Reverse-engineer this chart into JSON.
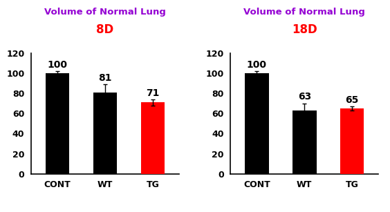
{
  "left": {
    "title_line1": "Volume of Normal Lung",
    "title_line2": "8D",
    "categories": [
      "CONT",
      "WT",
      "TG"
    ],
    "values": [
      100,
      81,
      71
    ],
    "errors": [
      2,
      8,
      3
    ],
    "bar_colors": [
      "#000000",
      "#000000",
      "#ff0000"
    ],
    "ylim": [
      0,
      120
    ],
    "yticks": [
      0,
      20,
      40,
      60,
      80,
      100,
      120
    ]
  },
  "right": {
    "title_line1": "Volume of Normal Lung",
    "title_line2": "18D",
    "categories": [
      "CONT",
      "WT",
      "TG"
    ],
    "values": [
      100,
      63,
      65
    ],
    "errors": [
      2,
      7,
      2
    ],
    "bar_colors": [
      "#000000",
      "#000000",
      "#ff0000"
    ],
    "ylim": [
      0,
      120
    ],
    "yticks": [
      0,
      20,
      40,
      60,
      80,
      100,
      120
    ]
  },
  "title_color": "#9400d3",
  "subtitle_color": "#ff0000",
  "bar_label_color": "#000000",
  "xtick_color": "#000000",
  "ytick_color": "#000000",
  "background_color": "#ffffff",
  "title_fontsize": 9.5,
  "subtitle_fontsize": 12,
  "bar_label_fontsize": 10,
  "tick_fontsize": 9,
  "bar_width": 0.5
}
